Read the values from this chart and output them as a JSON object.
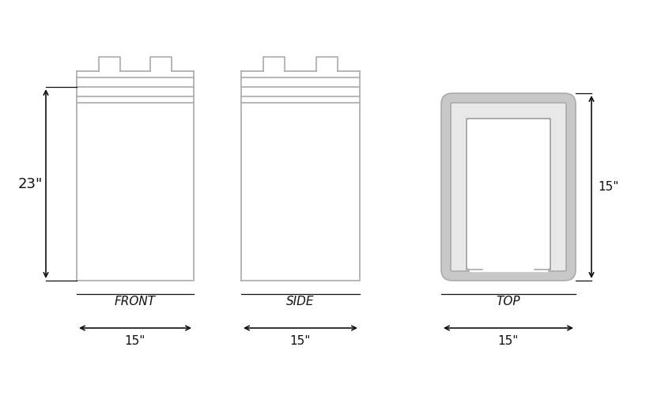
{
  "bg_color": "#ffffff",
  "line_color": "#aaaaaa",
  "dim_color": "#111111",
  "line_width": 1.2,
  "front_label": "FRONT",
  "side_label": "SIDE",
  "top_label": "TOP",
  "dim_23": "23\"",
  "dim_15": "15\""
}
